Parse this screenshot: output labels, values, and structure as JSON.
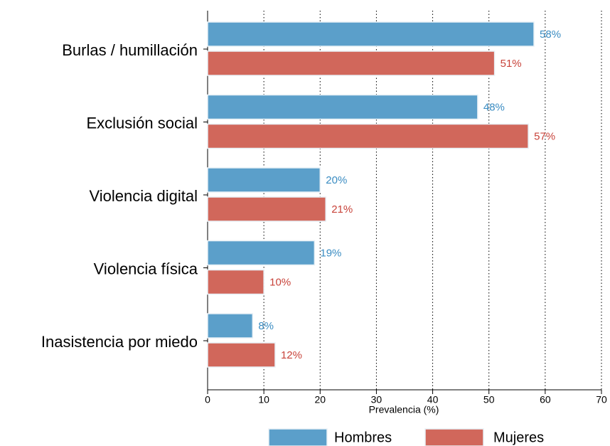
{
  "chart_data": {
    "type": "bar",
    "orientation": "horizontal",
    "categories": [
      "Burlas / humillación",
      "Exclusión social",
      "Violencia digital",
      "Violencia física",
      "Inasistencia por miedo"
    ],
    "series": [
      {
        "name": "Hombres",
        "color": "#5b9fca",
        "values": [
          58,
          48,
          20,
          19,
          8
        ],
        "value_labels": [
          "58%",
          "48%",
          "20%",
          "19%",
          "8%"
        ]
      },
      {
        "name": "Mujeres",
        "color": "#d1675b",
        "values": [
          51,
          57,
          21,
          10,
          12
        ],
        "value_labels": [
          "51%",
          "57%",
          "21%",
          "10%",
          "12%"
        ]
      }
    ],
    "xlabel": "Prevalencia (%)",
    "xlim": [
      0,
      70
    ],
    "xticks": [
      0,
      10,
      20,
      30,
      40,
      50,
      60,
      70
    ],
    "grid": true,
    "legend": "bottom"
  }
}
